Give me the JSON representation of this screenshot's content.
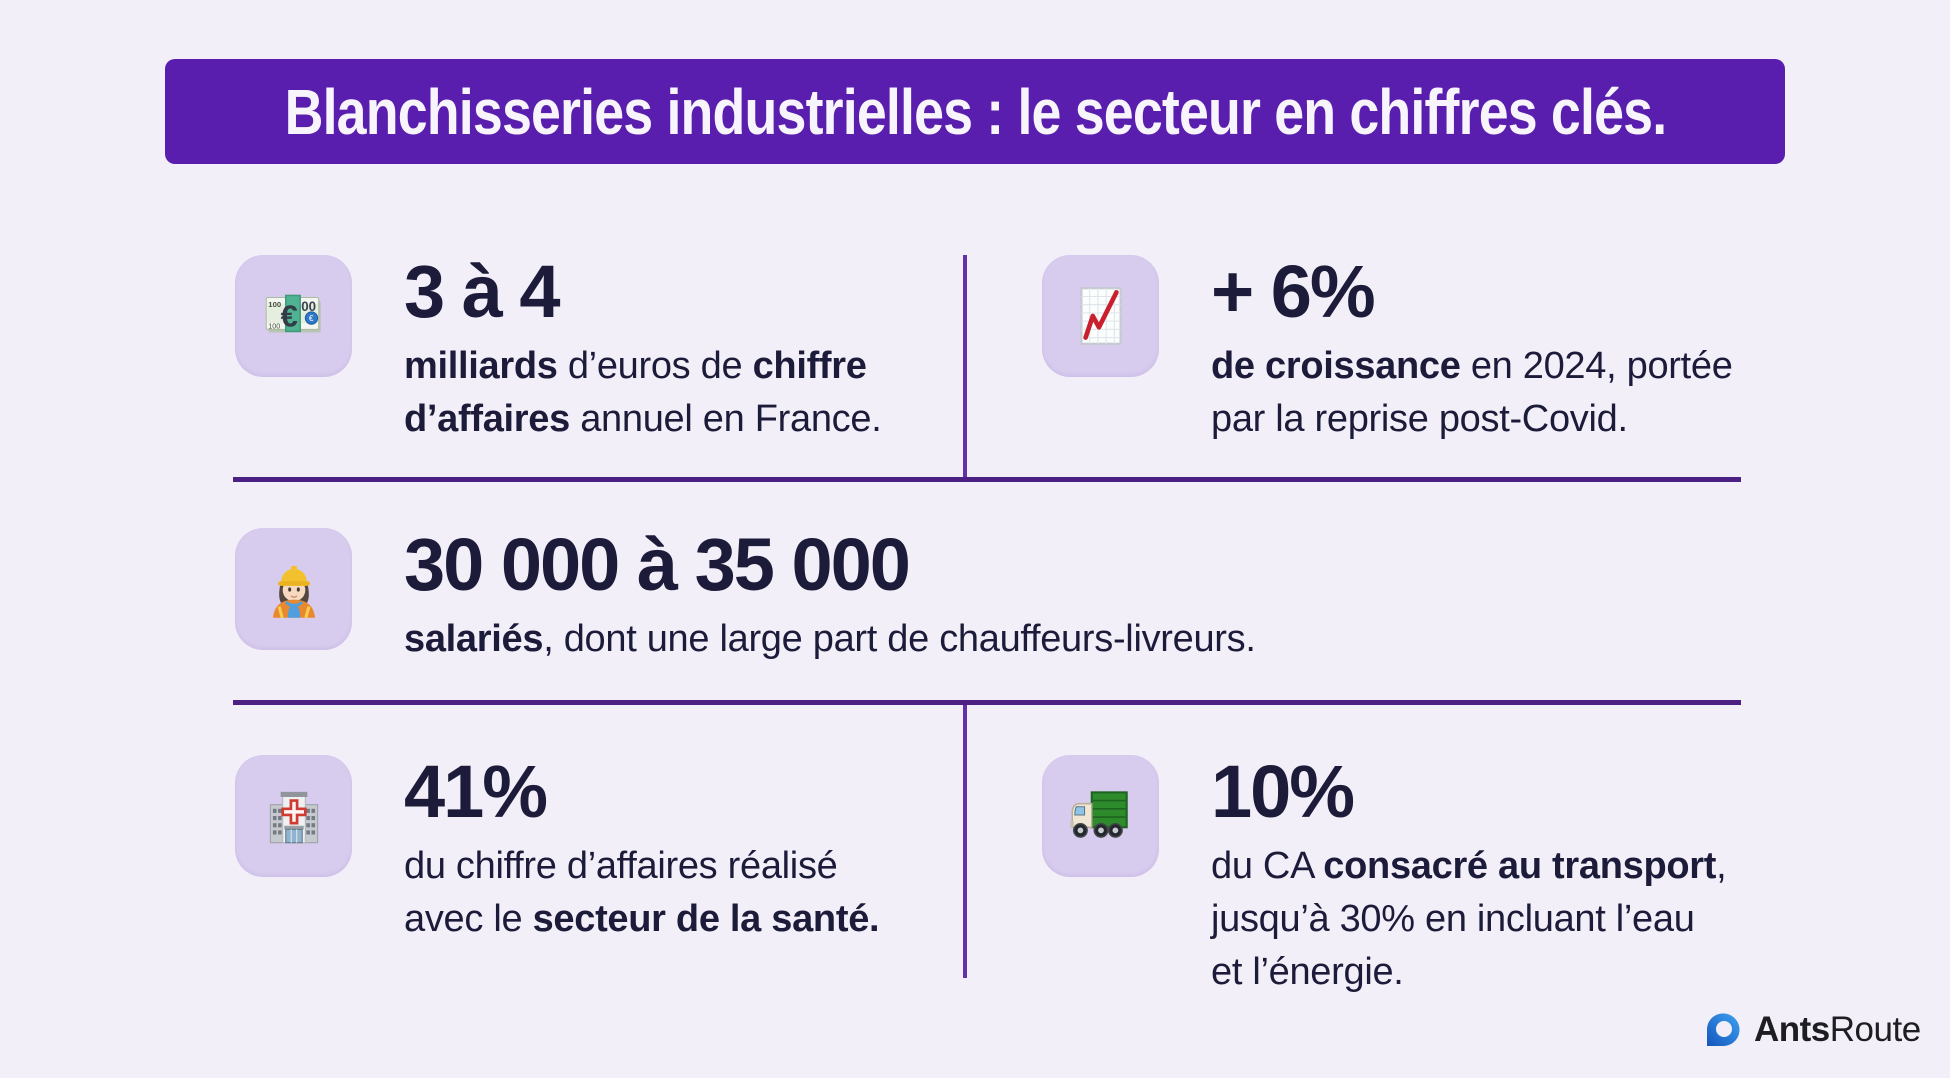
{
  "colors": {
    "background": "#F2EFF9",
    "banner": "#5A1EAE",
    "banner_text": "#F7F4FC",
    "tile": "#D8CCEE",
    "divider_horizontal": "#4D2083",
    "divider_vertical": "#6233A6",
    "text": "#1C1C3A",
    "logo_blue": "#2F80D6"
  },
  "banner": {
    "title": "Blanchisseries industrielles : le secteur en chiffres clés."
  },
  "stats": [
    {
      "id": "chiffre-affaires",
      "icon": "euro-banknotes-icon",
      "emoji": "💶",
      "headline": "3 à 4",
      "lines": [
        [
          {
            "t": "milliards",
            "b": true
          },
          {
            "t": " d’euros de ",
            "b": false
          },
          {
            "t": "chiffre",
            "b": true
          }
        ],
        [
          {
            "t": "d’affaires",
            "b": true
          },
          {
            "t": " annuel en France.",
            "b": false
          }
        ]
      ]
    },
    {
      "id": "croissance",
      "icon": "chart-increasing-icon",
      "emoji": "📈",
      "headline": "+ 6%",
      "lines": [
        [
          {
            "t": "de croissance",
            "b": true
          },
          {
            "t": " en 2024, portée",
            "b": false
          }
        ],
        [
          {
            "t": "par la reprise post-Covid.",
            "b": false
          }
        ]
      ]
    },
    {
      "id": "salaries",
      "icon": "construction-worker-icon",
      "emoji": "👷",
      "headline": "30 000 à 35 000",
      "lines": [
        [
          {
            "t": "salariés",
            "b": true
          },
          {
            "t": ", dont une large part de chauffeurs-livreurs.",
            "b": false
          }
        ]
      ]
    },
    {
      "id": "sante",
      "icon": "hospital-icon",
      "emoji": "🏥",
      "headline": "41%",
      "lines": [
        [
          {
            "t": "du chiffre d’affaires réalisé",
            "b": false
          }
        ],
        [
          {
            "t": "avec le ",
            "b": false
          },
          {
            "t": "secteur de la santé.",
            "b": true
          }
        ]
      ]
    },
    {
      "id": "transport",
      "icon": "delivery-truck-icon",
      "emoji": "🚚",
      "headline": "10%",
      "lines": [
        [
          {
            "t": "du CA ",
            "b": false
          },
          {
            "t": "consacré au transport",
            "b": true
          },
          {
            "t": ",",
            "b": false
          }
        ],
        [
          {
            "t": "jusqu’à 30% en incluant l’eau",
            "b": false
          }
        ],
        [
          {
            "t": "et l’énergie.",
            "b": false
          }
        ]
      ]
    }
  ],
  "logo": {
    "icon": "antsroute-pin-icon",
    "brand_bold": "Ants",
    "brand_regular": "Route"
  }
}
